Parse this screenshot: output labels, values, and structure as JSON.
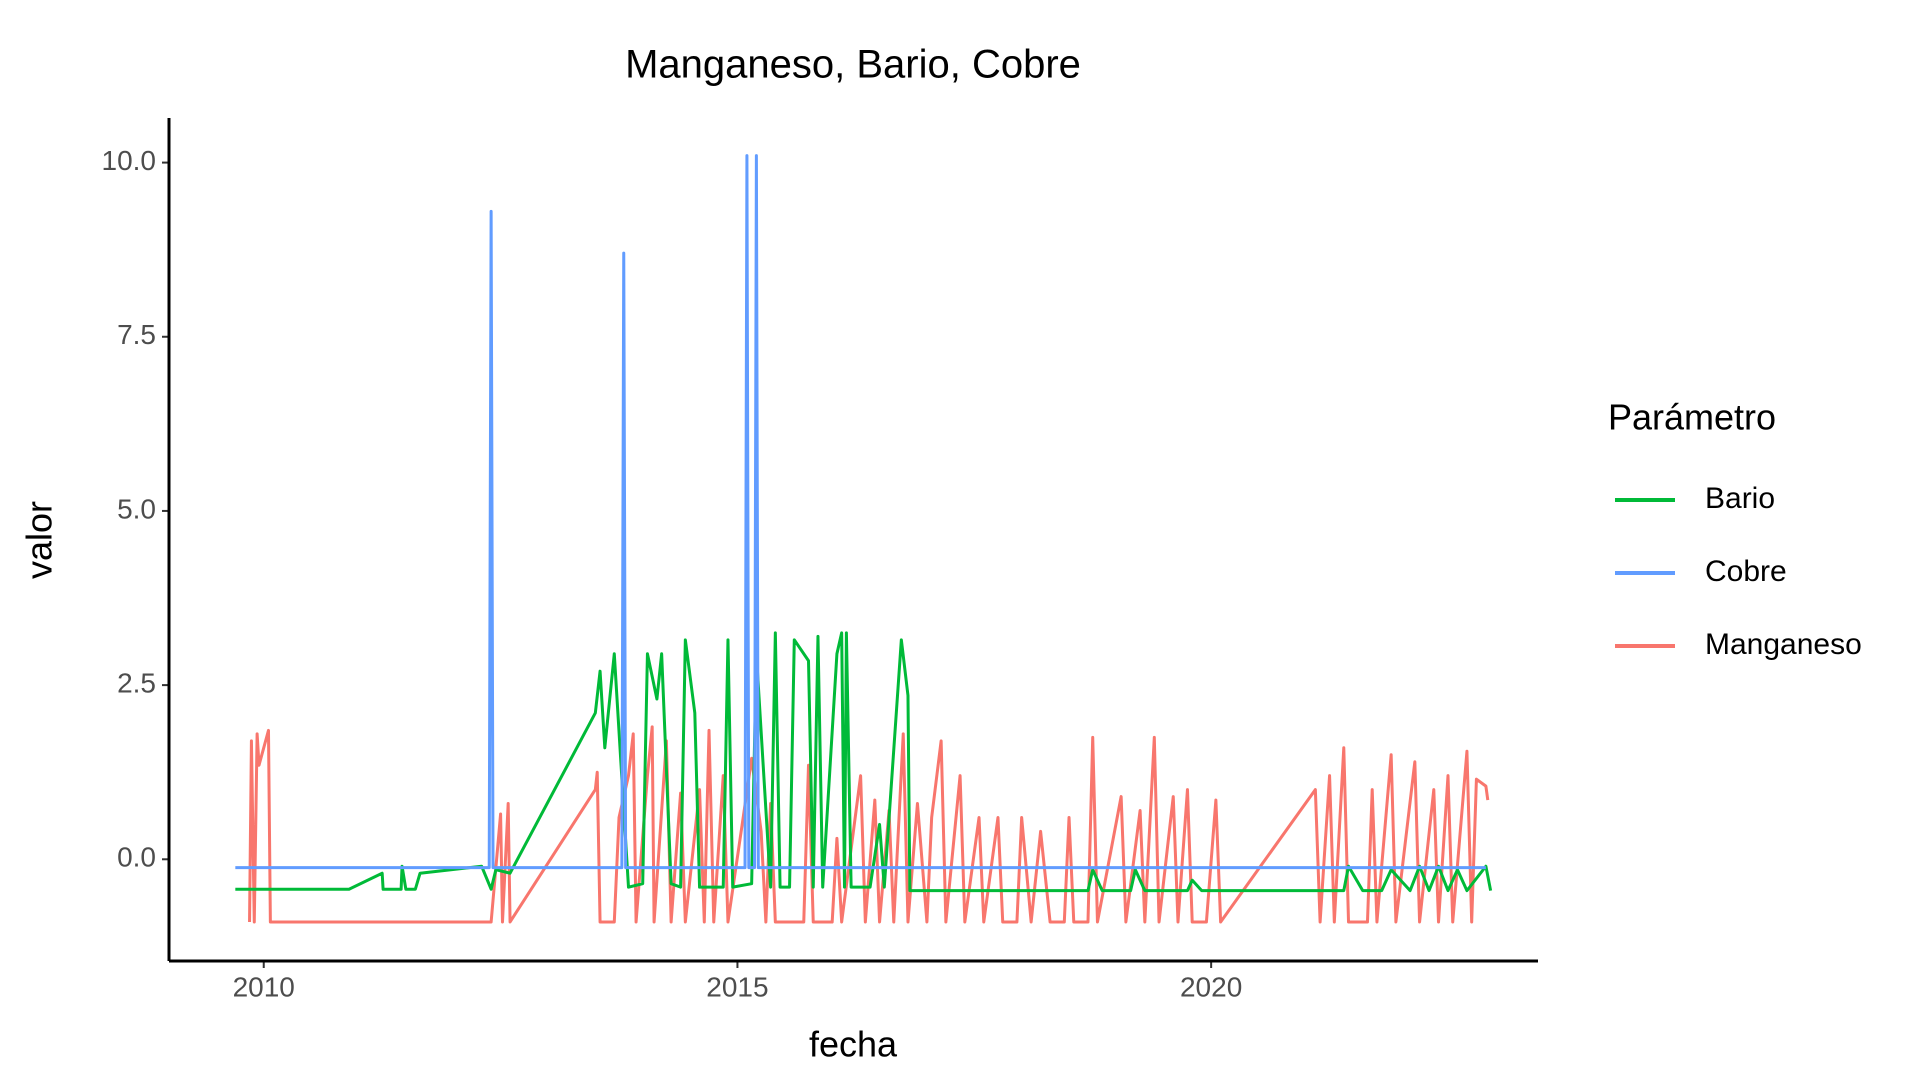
{
  "chart_data": {
    "type": "line",
    "title": "Manganeso, Bario, Cobre",
    "x_label": "fecha",
    "y_label": "valor",
    "legend_title": "Parámetro",
    "legend_position": "right",
    "xlim": [
      2009.0,
      2023.45
    ],
    "ylim": [
      -1.46,
      10.64
    ],
    "xticks": [
      2010,
      2015,
      2020
    ],
    "yticks": [
      {
        "value": 10,
        "label": "10.0"
      },
      {
        "value": 7.5,
        "label": "7.5"
      },
      {
        "value": 5,
        "label": "5.0"
      },
      {
        "value": 2.5,
        "label": "2.5"
      },
      {
        "value": 0,
        "label": "0.0"
      }
    ],
    "grid": false,
    "series": [
      {
        "name": "Bario",
        "color": "#00BA38",
        "x": [
          2009.7,
          2010.9,
          2011.25,
          2011.26,
          2011.45,
          2011.46,
          2011.5,
          2011.6,
          2011.65,
          2012.3,
          2012.4,
          2012.45,
          2012.6,
          2013.5,
          2013.55,
          2013.6,
          2013.7,
          2013.85,
          2014.0,
          2014.05,
          2014.15,
          2014.2,
          2014.3,
          2014.4,
          2014.45,
          2014.55,
          2014.6,
          2014.85,
          2014.9,
          2014.95,
          2015.15,
          2015.2,
          2015.35,
          2015.4,
          2015.45,
          2015.55,
          2015.6,
          2015.75,
          2015.8,
          2015.85,
          2015.9,
          2016.05,
          2016.1,
          2016.13,
          2016.15,
          2016.2,
          2016.4,
          2016.5,
          2016.55,
          2016.73,
          2016.8,
          2016.82,
          2018.7,
          2018.75,
          2018.85,
          2019.15,
          2019.2,
          2019.3,
          2019.75,
          2019.8,
          2019.9,
          2021.4,
          2021.45,
          2021.6,
          2021.8,
          2021.9,
          2022.1,
          2022.2,
          2022.3,
          2022.4,
          2022.5,
          2022.6,
          2022.7,
          2022.9,
          2022.95
        ],
        "values": [
          -0.43,
          -0.43,
          -0.2,
          -0.43,
          -0.43,
          -0.1,
          -0.43,
          -0.43,
          -0.2,
          -0.1,
          -0.43,
          -0.15,
          -0.2,
          2.1,
          2.7,
          1.6,
          2.95,
          -0.4,
          -0.35,
          2.95,
          2.3,
          2.95,
          -0.35,
          -0.4,
          3.15,
          2.1,
          -0.4,
          -0.4,
          3.15,
          -0.4,
          -0.35,
          2.95,
          -0.4,
          3.25,
          -0.4,
          -0.4,
          3.15,
          2.85,
          -0.4,
          3.2,
          -0.4,
          2.95,
          3.25,
          -0.4,
          3.25,
          -0.4,
          -0.4,
          0.5,
          -0.4,
          3.15,
          2.35,
          -0.45,
          -0.45,
          -0.15,
          -0.45,
          -0.45,
          -0.15,
          -0.45,
          -0.45,
          -0.3,
          -0.45,
          -0.45,
          -0.1,
          -0.45,
          -0.45,
          -0.15,
          -0.45,
          -0.1,
          -0.45,
          -0.1,
          -0.45,
          -0.15,
          -0.45,
          -0.1,
          -0.45
        ]
      },
      {
        "name": "Cobre",
        "color": "#619CFF",
        "x": [
          2009.7,
          2012.38,
          2012.4,
          2012.42,
          2013.78,
          2013.8,
          2013.82,
          2015.08,
          2015.1,
          2015.12,
          2015.18,
          2015.2,
          2015.22,
          2022.9
        ],
        "values": [
          -0.12,
          -0.12,
          9.3,
          -0.12,
          -0.12,
          8.7,
          -0.12,
          -0.12,
          10.1,
          -0.12,
          -0.12,
          10.1,
          -0.12,
          -0.12
        ]
      },
      {
        "name": "Manganeso",
        "color": "#F8766D",
        "x": [
          2009.85,
          2009.87,
          2009.9,
          2009.93,
          2009.95,
          2010.05,
          2010.07,
          2012.4,
          2012.5,
          2012.52,
          2012.58,
          2012.6,
          2013.5,
          2013.52,
          2013.55,
          2013.7,
          2013.75,
          2013.85,
          2013.9,
          2013.93,
          2014.05,
          2014.1,
          2014.12,
          2014.25,
          2014.3,
          2014.4,
          2014.45,
          2014.6,
          2014.65,
          2014.7,
          2014.75,
          2014.85,
          2014.9,
          2015.05,
          2015.15,
          2015.25,
          2015.3,
          2015.35,
          2015.4,
          2015.7,
          2015.75,
          2015.8,
          2016.0,
          2016.05,
          2016.1,
          2016.3,
          2016.35,
          2016.45,
          2016.5,
          2016.6,
          2016.65,
          2016.75,
          2016.8,
          2016.9,
          2017.0,
          2017.05,
          2017.15,
          2017.2,
          2017.35,
          2017.4,
          2017.55,
          2017.6,
          2017.75,
          2017.8,
          2017.95,
          2018.0,
          2018.1,
          2018.2,
          2018.3,
          2018.45,
          2018.5,
          2018.55,
          2018.7,
          2018.75,
          2018.8,
          2019.05,
          2019.1,
          2019.25,
          2019.3,
          2019.4,
          2019.45,
          2019.6,
          2019.65,
          2019.75,
          2019.8,
          2019.95,
          2020.05,
          2020.1,
          2021.1,
          2021.15,
          2021.25,
          2021.3,
          2021.4,
          2021.45,
          2021.65,
          2021.7,
          2021.75,
          2021.9,
          2021.95,
          2022.15,
          2022.2,
          2022.35,
          2022.4,
          2022.5,
          2022.55,
          2022.7,
          2022.75,
          2022.8,
          2022.9,
          2022.92
        ],
        "values": [
          -0.9,
          1.7,
          -0.9,
          1.8,
          1.35,
          1.85,
          -0.9,
          -0.9,
          0.65,
          -0.9,
          0.8,
          -0.9,
          1.0,
          1.25,
          -0.9,
          -0.9,
          0.6,
          1.2,
          1.8,
          -0.9,
          1.2,
          1.9,
          -0.9,
          1.7,
          -0.9,
          0.95,
          -0.9,
          1.0,
          -0.9,
          1.85,
          -0.9,
          1.2,
          -0.9,
          0.5,
          1.45,
          0.4,
          -0.9,
          0.8,
          -0.9,
          -0.9,
          1.35,
          -0.9,
          -0.9,
          0.3,
          -0.9,
          1.2,
          -0.9,
          0.85,
          -0.9,
          0.7,
          -0.9,
          1.8,
          -0.9,
          0.8,
          -0.9,
          0.6,
          1.7,
          -0.9,
          1.2,
          -0.9,
          0.6,
          -0.9,
          0.6,
          -0.9,
          -0.9,
          0.6,
          -0.9,
          0.4,
          -0.9,
          -0.9,
          0.6,
          -0.9,
          -0.9,
          1.75,
          -0.9,
          0.9,
          -0.9,
          0.7,
          -0.9,
          1.75,
          -0.9,
          0.9,
          -0.9,
          1.0,
          -0.9,
          -0.9,
          0.85,
          -0.9,
          1.0,
          -0.9,
          1.2,
          -0.9,
          1.6,
          -0.9,
          -0.9,
          1.0,
          -0.9,
          1.5,
          -0.9,
          1.4,
          -0.9,
          1.0,
          -0.9,
          1.2,
          -0.9,
          1.55,
          -0.9,
          1.15,
          1.05,
          0.85
        ]
      }
    ]
  }
}
